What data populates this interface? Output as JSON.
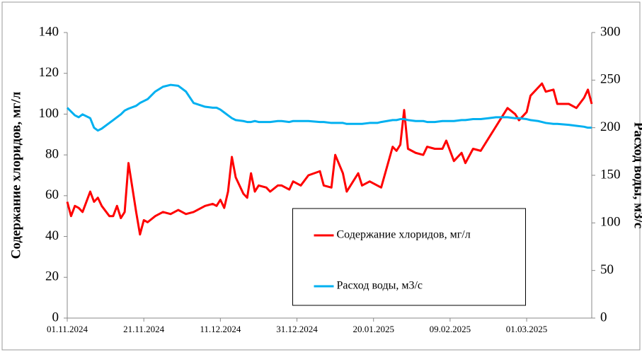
{
  "chart_data": {
    "type": "line",
    "ylabel": "Содержание хлоридов, мг/л",
    "y2label": "Расход воды, м3/с",
    "ylim": [
      0,
      140
    ],
    "yticks": [
      0,
      20,
      40,
      60,
      80,
      100,
      120,
      140
    ],
    "y2lim": [
      0,
      300
    ],
    "y2ticks": [
      0,
      50,
      100,
      150,
      200,
      250,
      300
    ],
    "xlim": [
      "01.11.2024",
      "18.03.2025"
    ],
    "xticks": [
      "01.11.2024",
      "21.11.2024",
      "11.12.2024",
      "31.12.2024",
      "20.01.2025",
      "09.02.2025",
      "01.03.2025"
    ],
    "grid": false,
    "legend": "lower center",
    "x": [
      "01.11.2024",
      "02.11.2024",
      "03.11.2024",
      "04.11.2024",
      "05.11.2024",
      "07.11.2024",
      "08.11.2024",
      "09.11.2024",
      "10.11.2024",
      "12.11.2024",
      "13.11.2024",
      "14.11.2024",
      "15.11.2024",
      "16.11.2024",
      "17.11.2024",
      "19.11.2024",
      "20.11.2024",
      "21.11.2024",
      "22.11.2024",
      "24.11.2024",
      "26.11.2024",
      "28.11.2024",
      "30.11.2024",
      "02.12.2024",
      "04.12.2024",
      "07.12.2024",
      "09.12.2024",
      "10.12.2024",
      "11.12.2024",
      "12.12.2024",
      "13.12.2024",
      "14.12.2024",
      "15.12.2024",
      "17.12.2024",
      "18.12.2024",
      "19.12.2024",
      "20.12.2024",
      "21.12.2024",
      "23.12.2024",
      "24.12.2024",
      "26.12.2024",
      "27.12.2024",
      "29.12.2024",
      "30.12.2024",
      "01.01.2025",
      "03.01.2025",
      "06.01.2025",
      "07.01.2025",
      "09.01.2025",
      "10.01.2025",
      "12.01.2025",
      "13.01.2025",
      "16.01.2025",
      "17.01.2025",
      "19.01.2025",
      "21.01.2025",
      "22.01.2025",
      "25.01.2025",
      "26.01.2025",
      "27.01.2025",
      "28.01.2025",
      "29.01.2025",
      "31.01.2025",
      "02.02.2025",
      "03.02.2025",
      "05.02.2025",
      "07.02.2025",
      "08.02.2025",
      "10.02.2025",
      "12.02.2025",
      "13.02.2025",
      "15.02.2025",
      "17.02.2025",
      "19.02.2025",
      "21.02.2025",
      "22.02.2025",
      "24.02.2025",
      "26.02.2025",
      "27.02.2025",
      "01.03.2025",
      "02.03.2025",
      "04.03.2025",
      "05.03.2025",
      "06.03.2025",
      "08.03.2025",
      "09.03.2025",
      "12.03.2025",
      "14.03.2025",
      "16.03.2025",
      "17.03.2025",
      "18.03.2025"
    ],
    "series": [
      {
        "name": "Содержание хлоридов, мг/л",
        "color": "#ff0000",
        "values": [
          57,
          50,
          55,
          54,
          52,
          62,
          57,
          59,
          55,
          50,
          50,
          55,
          49,
          52,
          76,
          52,
          41,
          48,
          47,
          50,
          52,
          51,
          53,
          51,
          52,
          55,
          56,
          55,
          58,
          54,
          62,
          79,
          69,
          61,
          59,
          71,
          62,
          65,
          64,
          62,
          65,
          65,
          63,
          67,
          65,
          70,
          72,
          65,
          64,
          80,
          71,
          62,
          71,
          65,
          67,
          65,
          64,
          84,
          82,
          85,
          102,
          83,
          81,
          80,
          84,
          83,
          83,
          87,
          77,
          81,
          76,
          83,
          82,
          88,
          94,
          97,
          103,
          100,
          97,
          101,
          109,
          113,
          115,
          111,
          112,
          105,
          105,
          103,
          108,
          112,
          105
        ]
      },
      {
        "name": "Расход воды, м3/с",
        "color": "#00b0f0",
        "axis": "y2",
        "values": [
          221,
          217,
          213,
          211,
          214,
          210,
          200,
          197,
          199,
          205,
          208,
          211,
          214,
          218,
          220,
          223,
          226,
          228,
          230,
          238,
          243,
          245,
          244,
          238,
          226,
          222,
          221,
          221,
          219,
          216,
          213,
          210,
          208,
          207,
          206,
          206,
          207,
          206,
          206,
          206,
          207,
          207,
          206,
          207,
          207,
          207,
          206,
          206,
          205,
          205,
          205,
          204,
          204,
          204,
          205,
          205,
          206,
          208,
          208,
          209,
          209,
          208,
          207,
          207,
          206,
          206,
          207,
          207,
          207,
          208,
          208,
          209,
          209,
          210,
          211,
          211,
          211,
          210,
          210,
          209,
          208,
          207,
          206,
          205,
          204,
          204,
          203,
          202,
          201,
          200,
          200
        ]
      }
    ]
  }
}
